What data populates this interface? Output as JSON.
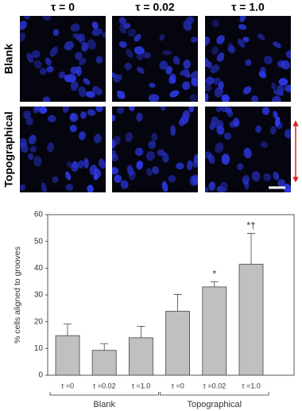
{
  "figure": {
    "column_labels": [
      "τ = 0",
      "τ = 0.02",
      "τ = 1.0"
    ],
    "row_labels": [
      "Blank",
      "Topographical"
    ]
  },
  "chart_data": {
    "type": "bar",
    "y_label": "% cells aligned to grooves",
    "categories": [
      "τ =0",
      "τ =0.02",
      "τ =1.0",
      "τ =0",
      "τ =0.02",
      "τ =1.0"
    ],
    "groups": [
      "Blank",
      "Topographical"
    ],
    "values": [
      14.8,
      9.3,
      14.0,
      23.9,
      33.0,
      41.5
    ],
    "errors": [
      4.4,
      2.5,
      4.3,
      6.3,
      1.9,
      11.5
    ],
    "annotations": [
      null,
      null,
      null,
      null,
      "*",
      "*†"
    ],
    "color": "#c0c0c0",
    "ylim": [
      0,
      60
    ],
    "yticks": [
      0,
      10,
      20,
      30,
      40,
      50,
      60
    ],
    "grid": false
  }
}
